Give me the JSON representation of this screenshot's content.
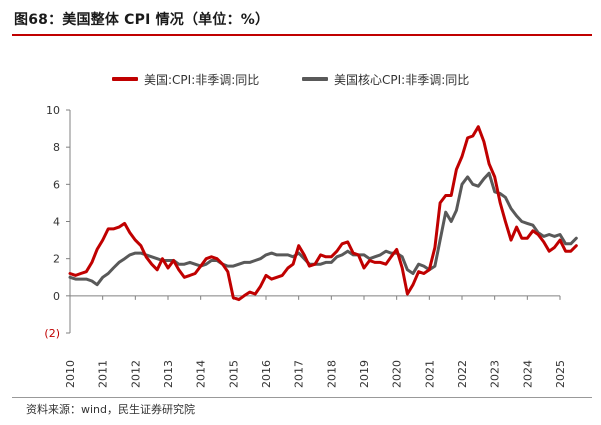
{
  "header": {
    "title": "图68：美国整体 CPI 情况（单位：%）"
  },
  "footer": {
    "source": "资料来源：wind，民生证券研究院"
  },
  "colors": {
    "headline": "#c00000",
    "core": "#595959",
    "negative_tick": "#c00000",
    "accent_rule": "#c00000"
  },
  "chart_data": {
    "type": "line",
    "title": "",
    "xlabel": "",
    "ylabel": "",
    "ylim": [
      -2,
      10
    ],
    "xlim": [
      2010.0,
      2025.0
    ],
    "y_ticks": [
      -2,
      0,
      2,
      4,
      6,
      8,
      10
    ],
    "y_tick_labels": [
      "(2)",
      "0",
      "2",
      "4",
      "6",
      "8",
      "10"
    ],
    "x_ticks": [
      "2010",
      "2011",
      "2012",
      "2013",
      "2014",
      "2015",
      "2016",
      "2017",
      "2018",
      "2019",
      "2020",
      "2021",
      "2022",
      "2023",
      "2024",
      "2025"
    ],
    "grid": false,
    "legend_position": "top",
    "series": [
      {
        "name": "美国:CPI:非季调:同比",
        "color": "#c00000",
        "points": [
          [
            2010.0,
            1.2
          ],
          [
            2010.17,
            1.1
          ],
          [
            2010.33,
            1.2
          ],
          [
            2010.5,
            1.3
          ],
          [
            2010.67,
            1.8
          ],
          [
            2010.83,
            2.5
          ],
          [
            2011.0,
            3.0
          ],
          [
            2011.17,
            3.6
          ],
          [
            2011.33,
            3.6
          ],
          [
            2011.5,
            3.7
          ],
          [
            2011.67,
            3.9
          ],
          [
            2011.83,
            3.4
          ],
          [
            2012.0,
            3.0
          ],
          [
            2012.17,
            2.7
          ],
          [
            2012.33,
            2.1
          ],
          [
            2012.5,
            1.7
          ],
          [
            2012.67,
            1.4
          ],
          [
            2012.83,
            2.0
          ],
          [
            2013.0,
            1.5
          ],
          [
            2013.17,
            1.9
          ],
          [
            2013.33,
            1.4
          ],
          [
            2013.5,
            1.0
          ],
          [
            2013.67,
            1.1
          ],
          [
            2013.83,
            1.2
          ],
          [
            2014.0,
            1.6
          ],
          [
            2014.17,
            2.0
          ],
          [
            2014.33,
            2.1
          ],
          [
            2014.5,
            2.0
          ],
          [
            2014.67,
            1.7
          ],
          [
            2014.83,
            1.3
          ],
          [
            2015.0,
            -0.1
          ],
          [
            2015.17,
            -0.2
          ],
          [
            2015.33,
            0.0
          ],
          [
            2015.5,
            0.2
          ],
          [
            2015.67,
            0.1
          ],
          [
            2015.83,
            0.5
          ],
          [
            2016.0,
            1.1
          ],
          [
            2016.17,
            0.9
          ],
          [
            2016.33,
            1.0
          ],
          [
            2016.5,
            1.1
          ],
          [
            2016.67,
            1.5
          ],
          [
            2016.83,
            1.7
          ],
          [
            2017.0,
            2.7
          ],
          [
            2017.17,
            2.2
          ],
          [
            2017.33,
            1.6
          ],
          [
            2017.5,
            1.7
          ],
          [
            2017.67,
            2.2
          ],
          [
            2017.83,
            2.1
          ],
          [
            2018.0,
            2.1
          ],
          [
            2018.17,
            2.4
          ],
          [
            2018.33,
            2.8
          ],
          [
            2018.5,
            2.9
          ],
          [
            2018.67,
            2.3
          ],
          [
            2018.83,
            2.2
          ],
          [
            2019.0,
            1.5
          ],
          [
            2019.17,
            1.9
          ],
          [
            2019.33,
            1.8
          ],
          [
            2019.5,
            1.8
          ],
          [
            2019.67,
            1.7
          ],
          [
            2019.83,
            2.1
          ],
          [
            2020.0,
            2.5
          ],
          [
            2020.17,
            1.5
          ],
          [
            2020.33,
            0.1
          ],
          [
            2020.5,
            0.6
          ],
          [
            2020.67,
            1.3
          ],
          [
            2020.83,
            1.2
          ],
          [
            2021.0,
            1.4
          ],
          [
            2021.17,
            2.6
          ],
          [
            2021.33,
            5.0
          ],
          [
            2021.5,
            5.4
          ],
          [
            2021.67,
            5.4
          ],
          [
            2021.83,
            6.8
          ],
          [
            2022.0,
            7.5
          ],
          [
            2022.17,
            8.5
          ],
          [
            2022.33,
            8.6
          ],
          [
            2022.5,
            9.1
          ],
          [
            2022.67,
            8.3
          ],
          [
            2022.83,
            7.1
          ],
          [
            2023.0,
            6.4
          ],
          [
            2023.17,
            5.0
          ],
          [
            2023.33,
            4.0
          ],
          [
            2023.5,
            3.0
          ],
          [
            2023.67,
            3.7
          ],
          [
            2023.83,
            3.1
          ],
          [
            2024.0,
            3.1
          ],
          [
            2024.17,
            3.5
          ],
          [
            2024.33,
            3.3
          ],
          [
            2024.5,
            2.9
          ],
          [
            2024.67,
            2.4
          ],
          [
            2024.83,
            2.6
          ],
          [
            2025.0,
            3.0
          ],
          [
            2025.17,
            2.4
          ],
          [
            2025.33,
            2.4
          ],
          [
            2025.5,
            2.7
          ]
        ]
      },
      {
        "name": "美国核心CPI:非季调:同比",
        "color": "#595959",
        "points": [
          [
            2010.0,
            1.0
          ],
          [
            2010.17,
            0.9
          ],
          [
            2010.33,
            0.9
          ],
          [
            2010.5,
            0.9
          ],
          [
            2010.67,
            0.8
          ],
          [
            2010.83,
            0.6
          ],
          [
            2011.0,
            1.0
          ],
          [
            2011.17,
            1.2
          ],
          [
            2011.33,
            1.5
          ],
          [
            2011.5,
            1.8
          ],
          [
            2011.67,
            2.0
          ],
          [
            2011.83,
            2.2
          ],
          [
            2012.0,
            2.3
          ],
          [
            2012.17,
            2.3
          ],
          [
            2012.33,
            2.2
          ],
          [
            2012.5,
            2.1
          ],
          [
            2012.67,
            2.0
          ],
          [
            2012.83,
            1.9
          ],
          [
            2013.0,
            1.9
          ],
          [
            2013.17,
            1.9
          ],
          [
            2013.33,
            1.7
          ],
          [
            2013.5,
            1.7
          ],
          [
            2013.67,
            1.8
          ],
          [
            2013.83,
            1.7
          ],
          [
            2014.0,
            1.6
          ],
          [
            2014.17,
            1.7
          ],
          [
            2014.33,
            1.9
          ],
          [
            2014.5,
            1.9
          ],
          [
            2014.67,
            1.7
          ],
          [
            2014.83,
            1.6
          ],
          [
            2015.0,
            1.6
          ],
          [
            2015.17,
            1.7
          ],
          [
            2015.33,
            1.8
          ],
          [
            2015.5,
            1.8
          ],
          [
            2015.67,
            1.9
          ],
          [
            2015.83,
            2.0
          ],
          [
            2016.0,
            2.2
          ],
          [
            2016.17,
            2.3
          ],
          [
            2016.33,
            2.2
          ],
          [
            2016.5,
            2.2
          ],
          [
            2016.67,
            2.2
          ],
          [
            2016.83,
            2.1
          ],
          [
            2017.0,
            2.3
          ],
          [
            2017.17,
            2.0
          ],
          [
            2017.33,
            1.7
          ],
          [
            2017.5,
            1.7
          ],
          [
            2017.67,
            1.7
          ],
          [
            2017.83,
            1.8
          ],
          [
            2018.0,
            1.8
          ],
          [
            2018.17,
            2.1
          ],
          [
            2018.33,
            2.2
          ],
          [
            2018.5,
            2.4
          ],
          [
            2018.67,
            2.2
          ],
          [
            2018.83,
            2.2
          ],
          [
            2019.0,
            2.2
          ],
          [
            2019.17,
            2.0
          ],
          [
            2019.33,
            2.1
          ],
          [
            2019.5,
            2.2
          ],
          [
            2019.67,
            2.4
          ],
          [
            2019.83,
            2.3
          ],
          [
            2020.0,
            2.3
          ],
          [
            2020.17,
            2.1
          ],
          [
            2020.33,
            1.4
          ],
          [
            2020.5,
            1.2
          ],
          [
            2020.67,
            1.7
          ],
          [
            2020.83,
            1.6
          ],
          [
            2021.0,
            1.4
          ],
          [
            2021.17,
            1.6
          ],
          [
            2021.33,
            3.0
          ],
          [
            2021.5,
            4.5
          ],
          [
            2021.67,
            4.0
          ],
          [
            2021.83,
            4.6
          ],
          [
            2022.0,
            6.0
          ],
          [
            2022.17,
            6.4
          ],
          [
            2022.33,
            6.0
          ],
          [
            2022.5,
            5.9
          ],
          [
            2022.67,
            6.3
          ],
          [
            2022.83,
            6.6
          ],
          [
            2023.0,
            5.6
          ],
          [
            2023.17,
            5.5
          ],
          [
            2023.33,
            5.3
          ],
          [
            2023.5,
            4.7
          ],
          [
            2023.67,
            4.3
          ],
          [
            2023.83,
            4.0
          ],
          [
            2024.0,
            3.9
          ],
          [
            2024.17,
            3.8
          ],
          [
            2024.33,
            3.4
          ],
          [
            2024.5,
            3.2
          ],
          [
            2024.67,
            3.3
          ],
          [
            2024.83,
            3.2
          ],
          [
            2025.0,
            3.3
          ],
          [
            2025.17,
            2.8
          ],
          [
            2025.33,
            2.8
          ],
          [
            2025.5,
            3.1
          ]
        ]
      }
    ]
  }
}
